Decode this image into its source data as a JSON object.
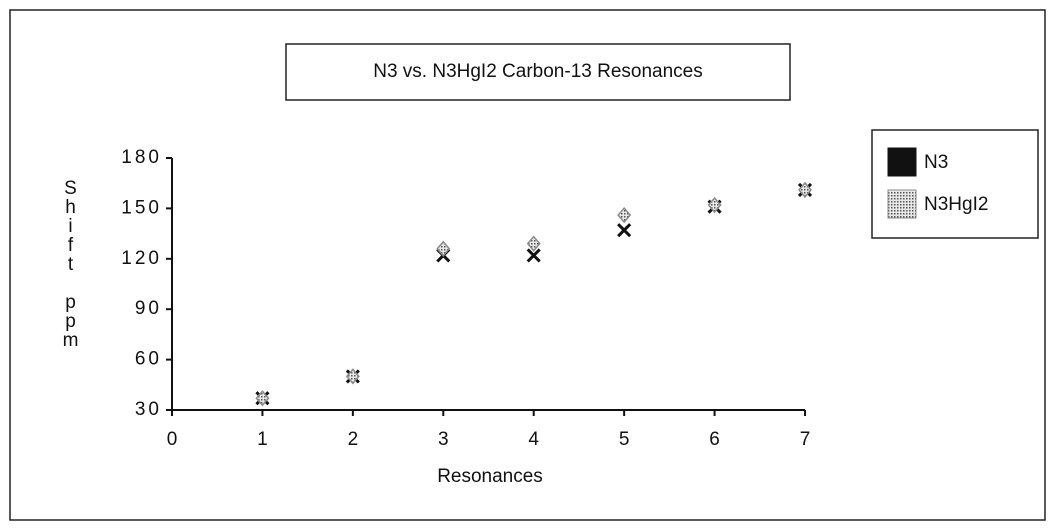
{
  "chart_data": {
    "type": "scatter",
    "title": "N3 vs. N3HgI2 Carbon-13 Resonances",
    "xlabel": "Resonances",
    "ylabel": "Shift ppm",
    "x": [
      1,
      2,
      3,
      4,
      5,
      6,
      7
    ],
    "series": [
      {
        "name": "N3",
        "color": "#111111",
        "values": [
          37,
          50,
          122,
          122,
          137,
          151,
          161
        ]
      },
      {
        "name": "N3HgI2",
        "color": "#8a8a8a",
        "values": [
          37,
          50,
          126,
          129,
          146,
          152,
          161
        ]
      }
    ],
    "xlim": [
      0,
      7
    ],
    "xticks": [
      0,
      1,
      2,
      3,
      4,
      5,
      6,
      7
    ],
    "ylim": [
      30,
      180
    ],
    "yticks": [
      30,
      60,
      90,
      120,
      150,
      180
    ],
    "legend": "right"
  }
}
